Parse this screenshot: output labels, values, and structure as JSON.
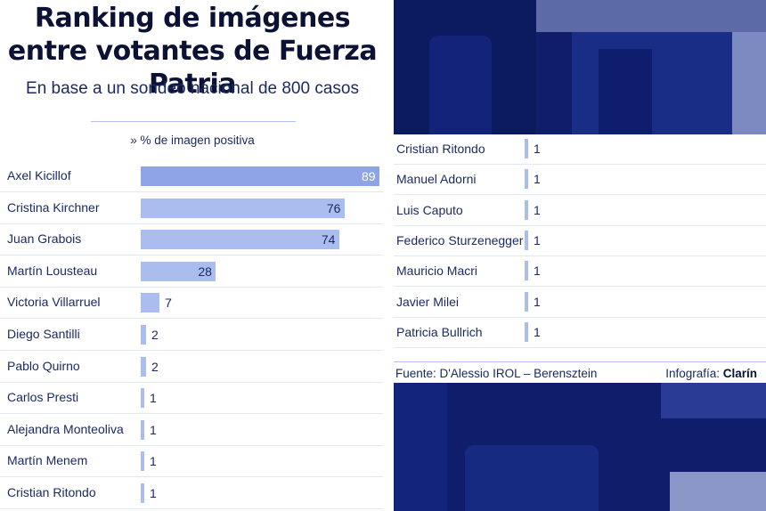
{
  "title": "Ranking de imágenes entre votantes de Fuerza Patria",
  "subtitle": "En base a un sondeo nacional de 800 casos",
  "legend_label": "» % de imagen positiva",
  "source": "Fuente: D'Alessio IROL – Berensztein",
  "credit_prefix": "Infografía: ",
  "credit_brand": "Clarín",
  "colors": {
    "bar": "#abbcef",
    "bar_top": "#8ea4e6",
    "text": "#1b2a63",
    "photo": "#0f1d6a"
  },
  "chart_data": [
    {
      "type": "bar",
      "orientation": "horizontal",
      "categories": [
        "Axel Kicillof",
        "Cristina Kirchner",
        "Juan Grabois",
        "Martín Lousteau",
        "Victoria Villarruel",
        "Diego Santilli",
        "Pablo Quirno",
        "Carlos Presti",
        "Alejandra Monteoliva",
        "Martín Menem",
        "Cristian Ritondo"
      ],
      "values": [
        89,
        76,
        74,
        28,
        7,
        2,
        2,
        1,
        1,
        1,
        1
      ],
      "xlim": [
        0,
        89
      ],
      "grid": false
    },
    {
      "type": "bar",
      "orientation": "horizontal",
      "categories": [
        "Cristian Ritondo",
        "Manuel Adorni",
        "Luis Caputo",
        "Federico Sturzenegger",
        "Mauricio Macri",
        "Javier Milei",
        "Patricia Bullrich"
      ],
      "values": [
        1,
        1,
        1,
        1,
        1,
        1,
        1
      ],
      "xlim": [
        0,
        89
      ],
      "grid": false
    }
  ]
}
